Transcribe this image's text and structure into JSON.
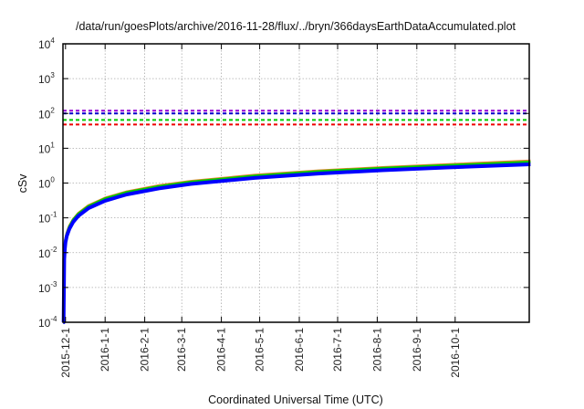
{
  "chart_data": {
    "type": "line",
    "title": "/data/run/goesPlots/archive/2016-11-28/flux/../bryn/366daysEarthDataAccumulated.plot",
    "xlabel": "Coordinated Universal Time (UTC)",
    "ylabel": "cSv",
    "yscale": "log",
    "ylim": [
      0.0001,
      10000
    ],
    "xlim": [
      "2015-11-29",
      "2016-11-28"
    ],
    "grid": true,
    "y_ticks": [
      {
        "base": "10",
        "exp": "-4",
        "value": 0.0001
      },
      {
        "base": "10",
        "exp": "-3",
        "value": 0.001
      },
      {
        "base": "10",
        "exp": "-2",
        "value": 0.01
      },
      {
        "base": "10",
        "exp": "-1",
        "value": 0.1
      },
      {
        "base": "10",
        "exp": "0",
        "value": 1
      },
      {
        "base": "10",
        "exp": "1",
        "value": 10
      },
      {
        "base": "10",
        "exp": "2",
        "value": 100
      },
      {
        "base": "10",
        "exp": "3",
        "value": 1000
      },
      {
        "base": "10",
        "exp": "4",
        "value": 10000
      }
    ],
    "x_ticks": [
      "2015-12-1",
      "2016-1-1",
      "2016-2-1",
      "2016-3-1",
      "2016-4-1",
      "2016-5-1",
      "2016-6-1",
      "2016-7-1",
      "2016-8-1",
      "2016-9-1",
      "2016-10-1"
    ],
    "reference_lines": [
      {
        "value": 120,
        "color": "#9400d3"
      },
      {
        "value": 100,
        "color": "#0000cc"
      },
      {
        "value": 65,
        "color": "#00cc00"
      },
      {
        "value": 48,
        "color": "#ee0000"
      }
    ],
    "series_x_days_since_2015-11-29": [
      0.5,
      1,
      1.5,
      2,
      3,
      5,
      8,
      12,
      20,
      33,
      50,
      75,
      100,
      150,
      200,
      250,
      300,
      366
    ],
    "series": [
      {
        "name": "orange",
        "color": "#f08030",
        "values": [
          0.0001,
          0.008,
          0.016,
          0.024,
          0.036,
          0.058,
          0.09,
          0.135,
          0.225,
          0.37,
          0.56,
          0.84,
          1.12,
          1.68,
          2.24,
          2.8,
          3.36,
          4.3
        ]
      },
      {
        "name": "green",
        "color": "#00cc00",
        "values": [
          0.0001,
          0.0075,
          0.015,
          0.023,
          0.034,
          0.055,
          0.087,
          0.13,
          0.215,
          0.355,
          0.54,
          0.8,
          1.07,
          1.6,
          2.14,
          2.67,
          3.2,
          4.0
        ]
      },
      {
        "name": "blue",
        "color": "#0000ff",
        "values": [
          0.0001,
          0.0065,
          0.013,
          0.02,
          0.03,
          0.048,
          0.076,
          0.113,
          0.19,
          0.31,
          0.47,
          0.7,
          0.94,
          1.4,
          1.87,
          2.33,
          2.8,
          3.45
        ]
      }
    ]
  }
}
